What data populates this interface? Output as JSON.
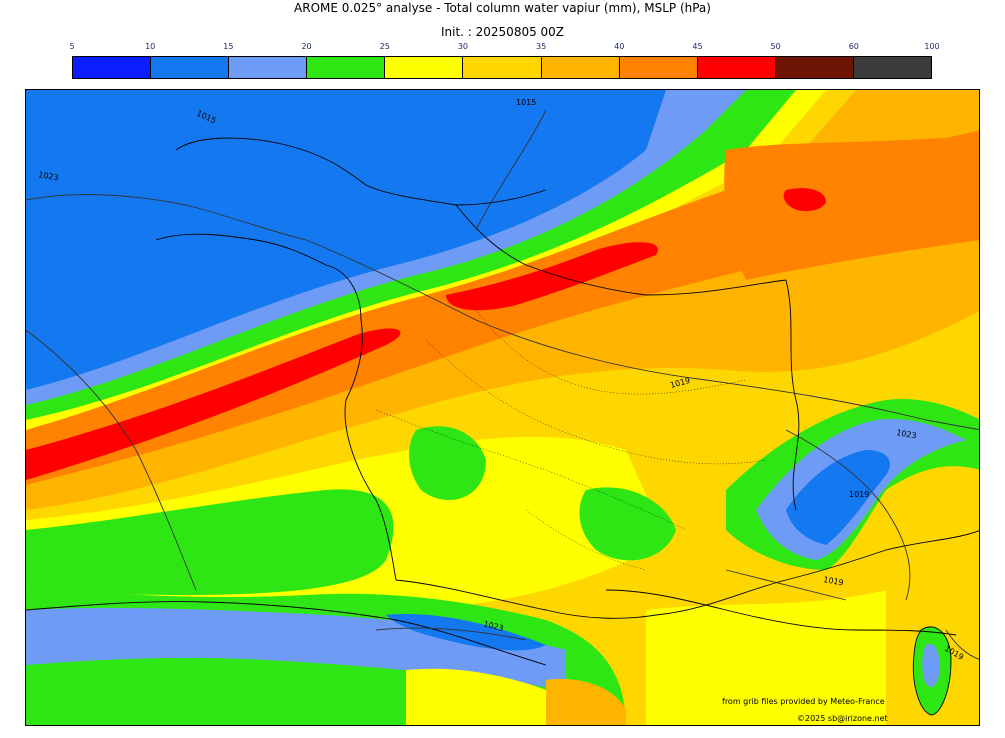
{
  "title": "AROME 0.025° analyse - Total column water vapiur (mm), MSLP (hPa)",
  "init": "Init. : 20250805 00Z",
  "colorbar": {
    "ticks": [
      "5",
      "10",
      "15",
      "20",
      "25",
      "30",
      "35",
      "40",
      "45",
      "50",
      "60",
      "100"
    ],
    "colors": [
      "#0a1eff",
      "#1478f0",
      "#6e9bf5",
      "#2ee614",
      "#ffff00",
      "#ffd700",
      "#ffb400",
      "#ff8200",
      "#ff0000",
      "#6e1405",
      "#3c3c3c"
    ]
  },
  "isobars": [
    "1015",
    "1015",
    "1023",
    "1019",
    "1023",
    "1019",
    "1019",
    "1023",
    "1019"
  ],
  "credits": {
    "line1": "from grib files provided by Meteo-France",
    "line2": "©2025 sb@irizone.net"
  }
}
